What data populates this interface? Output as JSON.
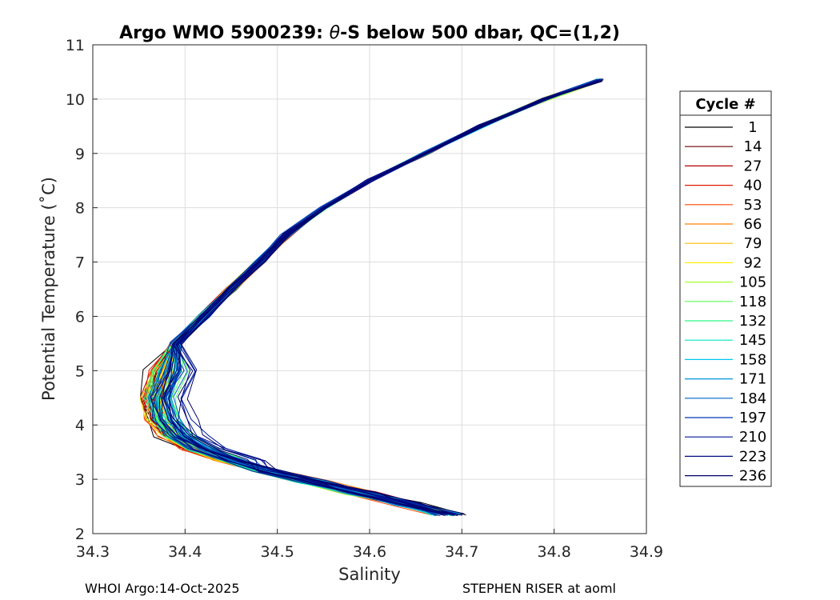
{
  "chart_data": {
    "type": "line",
    "title_prefix": "Argo WMO 5900239: ",
    "title_theta": "θ",
    "title_suffix": "-S below 500 dbar,  QC=(1,2)",
    "xlabel": "Salinity",
    "ylabel": "Potential Temperature (˚C)",
    "xlim": [
      34.3,
      34.9
    ],
    "ylim": [
      2,
      11
    ],
    "x_ticks": [
      "34.3",
      "34.4",
      "34.5",
      "34.6",
      "34.7",
      "34.8",
      "34.9"
    ],
    "y_ticks": [
      "2",
      "3",
      "4",
      "5",
      "6",
      "7",
      "8",
      "9",
      "10",
      "11"
    ],
    "grid": true,
    "legend_title": "Cycle #",
    "legend_placement": "right",
    "legend": [
      {
        "label": "1",
        "color": "#000000"
      },
      {
        "label": "14",
        "color": "#6e0000"
      },
      {
        "label": "27",
        "color": "#b40000"
      },
      {
        "label": "40",
        "color": "#e01b00"
      },
      {
        "label": "53",
        "color": "#ff4600"
      },
      {
        "label": "66",
        "color": "#ff8200"
      },
      {
        "label": "79",
        "color": "#ffbb00"
      },
      {
        "label": "92",
        "color": "#ffee00"
      },
      {
        "label": "105",
        "color": "#a8ff30"
      },
      {
        "label": "118",
        "color": "#55ff55"
      },
      {
        "label": "132",
        "color": "#2cf58b"
      },
      {
        "label": "145",
        "color": "#00e8c0"
      },
      {
        "label": "158",
        "color": "#00c8ee"
      },
      {
        "label": "171",
        "color": "#0094d8"
      },
      {
        "label": "184",
        "color": "#0064c8"
      },
      {
        "label": "197",
        "color": "#0038b4"
      },
      {
        "label": "210",
        "color": "#001a9c"
      },
      {
        "label": "223",
        "color": "#000c82"
      },
      {
        "label": "236",
        "color": "#00006a"
      }
    ],
    "profile_shape": {
      "S": [
        34.685,
        34.64,
        34.59,
        34.54,
        34.49,
        34.44,
        34.405,
        34.38,
        34.365,
        34.36,
        34.37,
        34.39,
        34.42,
        34.45,
        34.48,
        34.51,
        34.55,
        34.6,
        34.66,
        34.72,
        34.79,
        34.85
      ],
      "T": [
        2.35,
        2.55,
        2.75,
        2.95,
        3.15,
        3.35,
        3.55,
        3.8,
        4.1,
        4.5,
        5.0,
        5.5,
        6.0,
        6.5,
        7.0,
        7.5,
        8.0,
        8.5,
        9.0,
        9.5,
        10.0,
        10.35
      ]
    }
  },
  "footer": {
    "left": "WHOI Argo:14-Oct-2025",
    "right": "STEPHEN RISER at aoml"
  }
}
